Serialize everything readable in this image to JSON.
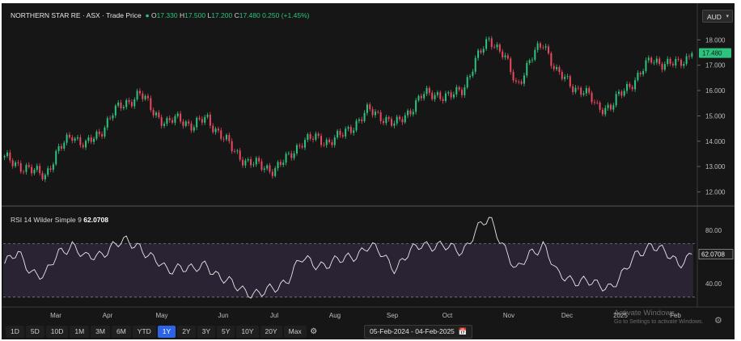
{
  "legend": {
    "symbol": "NORTHERN STAR RE · ASX · Trade Price",
    "o_label": "O",
    "o": "17.330",
    "h_label": "H",
    "h": "17.500",
    "l_label": "L",
    "l": "17.200",
    "c_label": "C",
    "c": "17.480",
    "change": "0.250 (+1.45%)"
  },
  "currency": "AUD",
  "rsi_legend": {
    "label": "RSI 14 Wilder Simple 9",
    "value": "62.0708"
  },
  "toolbar": {
    "timeframes": [
      "1D",
      "5D",
      "10D",
      "1M",
      "3M",
      "6M",
      "YTD",
      "1Y",
      "2Y",
      "3Y",
      "5Y",
      "10Y",
      "20Y",
      "Max"
    ],
    "active": "1Y",
    "date_range": "05-Feb-2024 - 04-Feb-2025"
  },
  "watermark": {
    "title": "Activate Windows",
    "subtitle": "Go to Settings to activate Windows."
  },
  "colors": {
    "up": "#2ec27e",
    "down": "#e8495f",
    "rsi_line": "#e8e8e8",
    "rsi_band": "#2a2333",
    "accent": "#2d63e5",
    "background": "#161616"
  },
  "chart_data": [
    {
      "type": "candlestick",
      "price_label": "17.480",
      "ylim": [
        11.6,
        19.0
      ],
      "y_ticks": [
        "12.000",
        "13.000",
        "14.000",
        "15.000",
        "16.000",
        "17.000",
        "18.000"
      ],
      "x_ticks": [
        "Mar",
        "Apr",
        "May",
        "Jun",
        "Jul",
        "Aug",
        "Sep",
        "Oct",
        "Nov",
        "Dec",
        "2025",
        "Feb"
      ],
      "grid": false,
      "approx_closes_weekly": [
        13.3,
        13.1,
        12.8,
        12.7,
        13.6,
        14.3,
        13.8,
        14.3,
        15.1,
        15.5,
        15.9,
        15.2,
        14.7,
        14.9,
        14.6,
        14.9,
        14.3,
        13.6,
        13.2,
        13.0,
        12.9,
        13.3,
        14.0,
        14.1,
        14.0,
        14.2,
        14.7,
        15.2,
        15.0,
        14.6,
        15.2,
        15.8,
        15.9,
        15.7,
        16.1,
        17.2,
        18.1,
        17.4,
        16.2,
        17.2,
        17.9,
        16.7,
        16.2,
        16.0,
        15.3,
        15.4,
        16.0,
        16.6,
        17.2,
        17.1,
        17.0,
        17.5
      ]
    },
    {
      "type": "line",
      "name": "RSI 14 Wilder Simple 9",
      "ylim": [
        25,
        95
      ],
      "y_ticks": [
        "40.00",
        "80.00"
      ],
      "band": [
        30,
        70
      ],
      "current_label": "62.0708",
      "approx_values_weekly": [
        55,
        62,
        50,
        45,
        63,
        70,
        58,
        62,
        68,
        71,
        69,
        58,
        50,
        54,
        49,
        55,
        45,
        38,
        35,
        32,
        36,
        44,
        58,
        55,
        55,
        57,
        62,
        68,
        62,
        52,
        62,
        70,
        69,
        66,
        65,
        80,
        88,
        70,
        48,
        63,
        70,
        46,
        44,
        42,
        38,
        39,
        48,
        63,
        70,
        62,
        56,
        62
      ]
    }
  ]
}
